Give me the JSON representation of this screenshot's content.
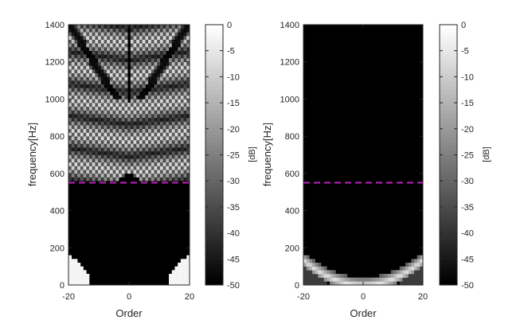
{
  "chart_data": [
    {
      "type": "heatmap",
      "title": "",
      "xlabel": "Order",
      "ylabel": "frequency[Hz]",
      "xlim": [
        -20,
        20
      ],
      "ylim": [
        0,
        1400
      ],
      "xticks": [
        -20,
        0,
        20
      ],
      "yticks": [
        0,
        200,
        400,
        600,
        800,
        1000,
        1200,
        1400
      ],
      "colormap": "gray",
      "colorbar": {
        "label": "[dB]",
        "range": [
          -50,
          0
        ],
        "ticks": [
          0,
          -5,
          -10,
          -15,
          -20,
          -25,
          -30,
          -35,
          -40,
          -45,
          -50
        ]
      },
      "reference_line": {
        "frequency_hz": 550,
        "style": "dashed",
        "color": "#c020c0"
      },
      "description_values": {
        "low_energy_region": "dark below ~550 Hz except bottom corners (|order| > 15, f < 100 Hz)",
        "aliasing_pattern": "checkerboard of bright points above ~600 Hz forming diagonal bands",
        "vertical_black_line_at_order": 0
      }
    },
    {
      "type": "heatmap",
      "title": "",
      "xlabel": "Order",
      "ylabel": "frequency[Hz]",
      "xlim": [
        -20,
        20
      ],
      "ylim": [
        0,
        1400
      ],
      "xticks": [
        -20,
        0,
        20
      ],
      "yticks": [
        0,
        200,
        400,
        600,
        800,
        1000,
        1200,
        1400
      ],
      "colormap": "gray",
      "colorbar": {
        "label": "[dB]",
        "range": [
          -50,
          0
        ],
        "ticks": [
          0,
          -5,
          -10,
          -15,
          -20,
          -25,
          -30,
          -35,
          -40,
          -45,
          -50
        ]
      },
      "reference_line": {
        "frequency_hz": 550,
        "style": "dashed",
        "color": "#c020c0"
      },
      "description_values": {
        "bright_region": "U-shaped band near bottom, order -20..20, f 0..~160 Hz"
      }
    }
  ]
}
